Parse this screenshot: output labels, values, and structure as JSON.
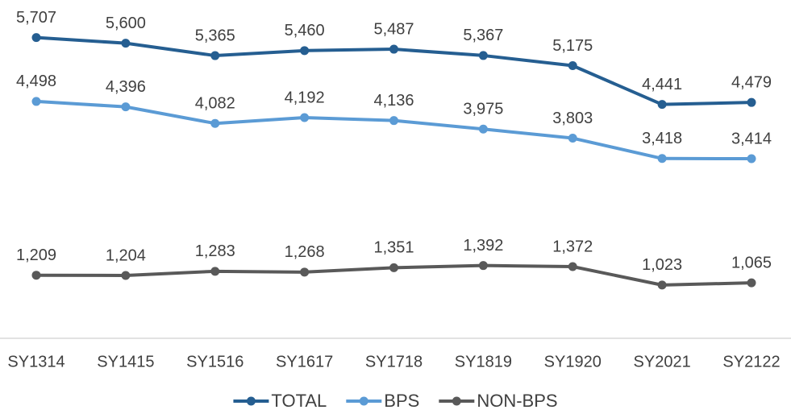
{
  "chart_data": {
    "type": "line",
    "categories": [
      "SY1314",
      "SY1415",
      "SY1516",
      "SY1617",
      "SY1718",
      "SY1819",
      "SY1920",
      "SY2021",
      "SY2122"
    ],
    "series": [
      {
        "name": "TOTAL",
        "color": "#255e91",
        "values": [
          5707,
          5600,
          5365,
          5460,
          5487,
          5367,
          5175,
          4441,
          4479
        ],
        "value_labels": [
          "5,707",
          "5,600",
          "5,365",
          "5,460",
          "5,487",
          "5,367",
          "5,175",
          "4,441",
          "4,479"
        ]
      },
      {
        "name": "BPS",
        "color": "#5b9bd5",
        "values": [
          4498,
          4396,
          4082,
          4192,
          4136,
          3975,
          3803,
          3418,
          3414
        ],
        "value_labels": [
          "4,498",
          "4,396",
          "4,082",
          "4,192",
          "4,136",
          "3,975",
          "3,803",
          "3,418",
          "3,414"
        ]
      },
      {
        "name": "NON-BPS",
        "color": "#595959",
        "values": [
          1209,
          1204,
          1283,
          1268,
          1351,
          1392,
          1372,
          1023,
          1065
        ],
        "value_labels": [
          "1,209",
          "1,204",
          "1,283",
          "1,268",
          "1,351",
          "1,392",
          "1,372",
          "1,023",
          "1,065"
        ]
      }
    ],
    "legend": "bottom"
  }
}
